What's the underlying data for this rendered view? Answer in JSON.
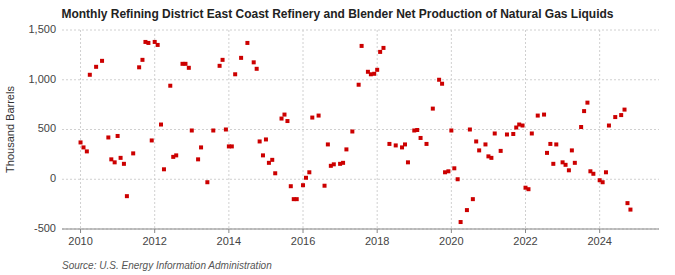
{
  "chart_data": {
    "type": "scatter",
    "title": "Monthly Refining District East Coast Refinery and Blender Net Production of Natural Gas Liquids",
    "ylabel": "Thousand Barrels",
    "source": "Source: U.S. Energy Information Administration",
    "color": "#cc0000",
    "marker": "square",
    "grid": true,
    "xlim": [
      2009.5,
      2025.6
    ],
    "ylim": [
      -500,
      1500
    ],
    "xticks": [
      2010,
      2012,
      2014,
      2016,
      2018,
      2020,
      2022,
      2024
    ],
    "yticks": [
      -500,
      0,
      500,
      {
        "value": 1000,
        "label": "1,000"
      },
      {
        "value": 1500,
        "label": "1,500"
      }
    ],
    "x": [
      2010.0,
      2010.08,
      2010.17,
      2010.25,
      2010.42,
      2010.58,
      2010.75,
      2010.83,
      2010.92,
      2011.0,
      2011.08,
      2011.17,
      2011.25,
      2011.42,
      2011.58,
      2011.67,
      2011.75,
      2011.83,
      2011.92,
      2012.0,
      2012.08,
      2012.17,
      2012.25,
      2012.42,
      2012.5,
      2012.58,
      2012.75,
      2012.83,
      2012.92,
      2013.0,
      2013.17,
      2013.25,
      2013.42,
      2013.58,
      2013.75,
      2013.83,
      2013.92,
      2014.0,
      2014.08,
      2014.17,
      2014.33,
      2014.5,
      2014.67,
      2014.75,
      2014.83,
      2014.92,
      2015.0,
      2015.08,
      2015.17,
      2015.25,
      2015.42,
      2015.5,
      2015.58,
      2015.67,
      2015.75,
      2015.83,
      2016.0,
      2016.08,
      2016.17,
      2016.25,
      2016.42,
      2016.58,
      2016.67,
      2016.75,
      2016.83,
      2017.0,
      2017.08,
      2017.17,
      2017.33,
      2017.5,
      2017.58,
      2017.75,
      2017.83,
      2017.92,
      2018.0,
      2018.08,
      2018.17,
      2018.33,
      2018.5,
      2018.67,
      2018.75,
      2018.83,
      2019.0,
      2019.08,
      2019.17,
      2019.33,
      2019.5,
      2019.67,
      2019.75,
      2019.83,
      2019.92,
      2020.0,
      2020.08,
      2020.17,
      2020.25,
      2020.42,
      2020.5,
      2020.58,
      2020.67,
      2020.75,
      2020.92,
      2021.0,
      2021.08,
      2021.17,
      2021.33,
      2021.5,
      2021.67,
      2021.75,
      2021.83,
      2021.92,
      2022.0,
      2022.08,
      2022.17,
      2022.33,
      2022.5,
      2022.58,
      2022.67,
      2022.75,
      2022.83,
      2023.0,
      2023.08,
      2023.17,
      2023.25,
      2023.33,
      2023.5,
      2023.58,
      2023.67,
      2023.75,
      2023.83,
      2024.0,
      2024.08,
      2024.17,
      2024.25,
      2024.42,
      2024.58,
      2024.67,
      2024.75,
      2024.83
    ],
    "values": [
      370,
      320,
      280,
      1050,
      1130,
      1190,
      420,
      200,
      170,
      435,
      215,
      155,
      -170,
      260,
      1125,
      1200,
      1380,
      1370,
      390,
      1380,
      1350,
      550,
      100,
      940,
      225,
      240,
      1160,
      1160,
      1120,
      490,
      200,
      320,
      -30,
      490,
      1140,
      1200,
      500,
      330,
      330,
      1055,
      1220,
      1370,
      1175,
      1110,
      380,
      240,
      400,
      165,
      195,
      60,
      610,
      650,
      585,
      -70,
      -200,
      -200,
      -60,
      15,
      70,
      620,
      640,
      -65,
      350,
      135,
      150,
      155,
      165,
      300,
      480,
      950,
      1340,
      1080,
      1055,
      1060,
      1100,
      1280,
      1320,
      355,
      340,
      320,
      350,
      170,
      490,
      495,
      415,
      355,
      710,
      1000,
      960,
      70,
      80,
      490,
      110,
      0,
      -430,
      -310,
      500,
      -200,
      380,
      290,
      350,
      230,
      215,
      460,
      285,
      450,
      455,
      520,
      550,
      540,
      -85,
      -100,
      460,
      640,
      650,
      265,
      355,
      155,
      350,
      170,
      145,
      90,
      290,
      165,
      525,
      685,
      770,
      80,
      55,
      -10,
      -30,
      70,
      540,
      625,
      645,
      700,
      -240,
      -305
    ]
  }
}
